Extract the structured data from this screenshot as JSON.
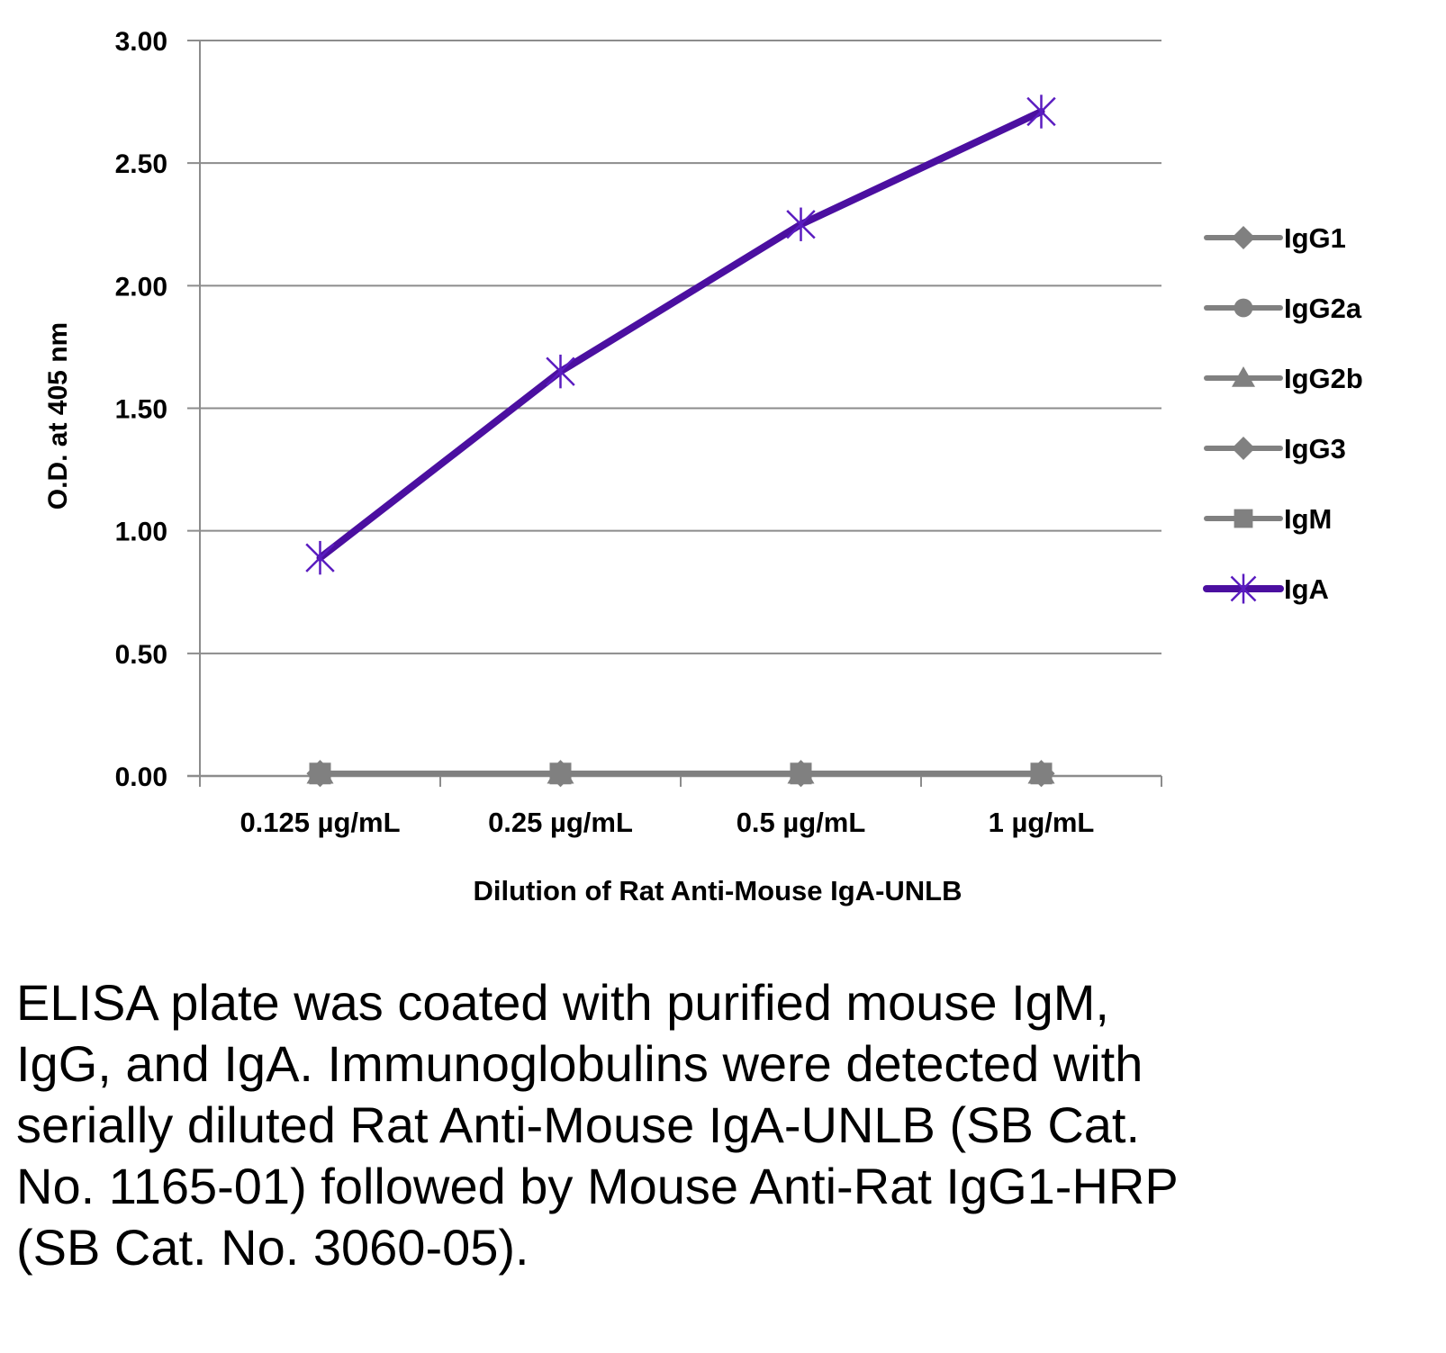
{
  "chart_data": {
    "type": "line",
    "title": "",
    "xlabel": "Dilution of Rat Anti-Mouse IgA-UNLB",
    "ylabel": "O.D. at 405 nm",
    "categories": [
      "0.125 µg/mL",
      "0.25 µg/mL",
      "0.5 µg/mL",
      "1 µg/mL"
    ],
    "ylim": [
      0,
      3
    ],
    "yticks": [
      0,
      0.5,
      1,
      1.5,
      2,
      2.5,
      3
    ],
    "ytick_labels": [
      "0.00",
      "0.50",
      "1.00",
      "1.50",
      "2.00",
      "2.50",
      "3.00"
    ],
    "grid": true,
    "legend_position": "right",
    "series": [
      {
        "name": "IgG1",
        "values": [
          0.01,
          0.01,
          0.01,
          0.01
        ],
        "color": "#808080",
        "marker": "diamond"
      },
      {
        "name": "IgG2a",
        "values": [
          0.01,
          0.01,
          0.01,
          0.01
        ],
        "color": "#808080",
        "marker": "circle"
      },
      {
        "name": "IgG2b",
        "values": [
          0.01,
          0.01,
          0.01,
          0.01
        ],
        "color": "#808080",
        "marker": "triangle"
      },
      {
        "name": "IgG3",
        "values": [
          0.01,
          0.01,
          0.01,
          0.01
        ],
        "color": "#808080",
        "marker": "diamond"
      },
      {
        "name": "IgM",
        "values": [
          0.01,
          0.01,
          0.01,
          0.01
        ],
        "color": "#808080",
        "marker": "square"
      },
      {
        "name": "IgA",
        "values": [
          0.89,
          1.65,
          2.25,
          2.71
        ],
        "color": "#4b0fa0",
        "marker": "asterisk"
      }
    ]
  },
  "caption": "ELISA plate was coated with purified mouse IgM, IgG, and IgA.  Immunoglobulins were detected with serially diluted Rat Anti-Mouse IgA-UNLB (SB Cat. No. 1165-01) followed by Mouse Anti-Rat IgG1-HRP (SB Cat. No. 3060-05)."
}
